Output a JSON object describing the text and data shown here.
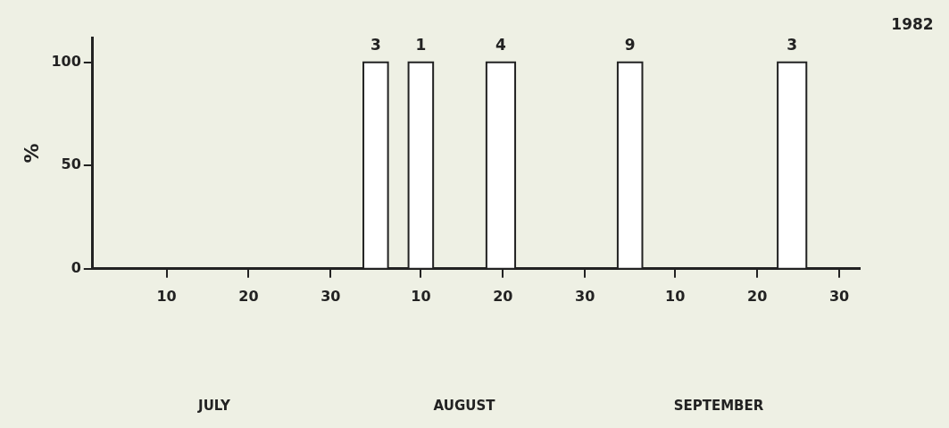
{
  "chart_data": {
    "type": "histogram",
    "ylabel": "%",
    "bins": [
      "1982-08-03",
      "1982-08-06",
      "1982-08-08T12:00",
      "1982-08-11T12:00",
      "1982-08-18",
      "1982-08-21T12:00",
      "1982-09-03",
      "1982-09-06",
      "1982-09-22T12:00",
      "1982-09-26"
    ],
    "values": [
      100,
      0,
      100,
      0,
      100,
      0,
      100,
      0,
      100
    ],
    "color": "#ffffff",
    "xlim": [
      "1982-07-01",
      "1982-10-02T12:00"
    ],
    "xticks": [
      {
        "value": "1982-07-10",
        "label": "10"
      },
      {
        "value": "1982-07-20",
        "label": "20"
      },
      {
        "value": "1982-07-30",
        "label": "30"
      },
      {
        "value": "1982-08-10",
        "label": "10"
      },
      {
        "value": "1982-08-20",
        "label": "20"
      },
      {
        "value": "1982-08-30",
        "label": "30"
      },
      {
        "value": "1982-09-10",
        "label": "10"
      },
      {
        "value": "1982-09-20",
        "label": "20"
      },
      {
        "value": "1982-09-30",
        "label": "30"
      }
    ],
    "ylim": [
      0,
      112
    ],
    "yticks": [
      0,
      50,
      100
    ],
    "grid": false,
    "legend": false,
    "annotations": [
      {
        "text": "3",
        "x": "1982-08-04T12:00",
        "y": 100
      },
      {
        "text": "1",
        "x": "1982-08-10",
        "y": 100
      },
      {
        "text": "4",
        "x": "1982-08-19T18:00",
        "y": 100
      },
      {
        "text": "9",
        "x": "1982-09-04T12:00",
        "y": 100
      },
      {
        "text": "3",
        "x": "1982-09-24T06:00",
        "y": 100
      },
      "JULY",
      "AUGUST",
      "SEPTEMBER",
      "1982"
    ]
  }
}
